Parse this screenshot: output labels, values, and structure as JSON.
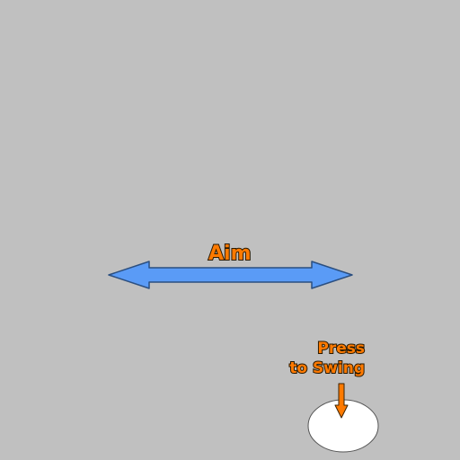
{
  "scene": {
    "background_color": "#c0c0c0"
  },
  "aim": {
    "label": "Aim",
    "icon": "double-headed-arrow-icon",
    "arrow_color": "#5a9bf6"
  },
  "swing": {
    "label_line1": "Press",
    "label_line2": "to Swing",
    "arrow_icon": "down-arrow-icon",
    "arrow_color": "#ff7a00",
    "button_color": "#ffffff"
  },
  "text_color": "#ff7a00"
}
